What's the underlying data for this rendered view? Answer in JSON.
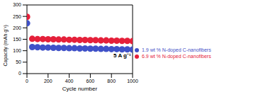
{
  "chart_data": {
    "type": "scatter",
    "annotations": [
      "5 A g⁻¹"
    ],
    "x_label": "Cycle number",
    "y_label": "Capacity (mAh g⁻¹)",
    "x": [
      1,
      50,
      100,
      150,
      200,
      250,
      300,
      350,
      400,
      450,
      500,
      550,
      600,
      650,
      700,
      750,
      800,
      850,
      900,
      950,
      1000
    ],
    "series": [
      {
        "name": "1.9 wt % N-doped C-nanofibers",
        "color": "#3f51c8",
        "marker": "circle",
        "values": [
          220,
          116,
          115,
          114,
          114,
          113,
          112,
          112,
          111,
          111,
          110,
          110,
          109,
          109,
          108,
          108,
          107,
          107,
          106,
          106,
          105
        ]
      },
      {
        "name": "6.9 wt % N-doped C-nanofibers",
        "color": "#e5203a",
        "marker": "circle",
        "values": [
          248,
          152,
          151,
          151,
          150,
          150,
          149,
          149,
          148,
          148,
          147,
          147,
          146,
          146,
          145,
          145,
          144,
          144,
          143,
          143,
          142
        ]
      }
    ],
    "xlim": [
      0,
      1000
    ],
    "xticks": [
      0,
      200,
      400,
      600,
      800,
      1000
    ],
    "ylim": [
      0,
      300
    ],
    "yticks": [
      0,
      50,
      100,
      150,
      200,
      250,
      300
    ],
    "grid": false,
    "legend": "lower right"
  }
}
